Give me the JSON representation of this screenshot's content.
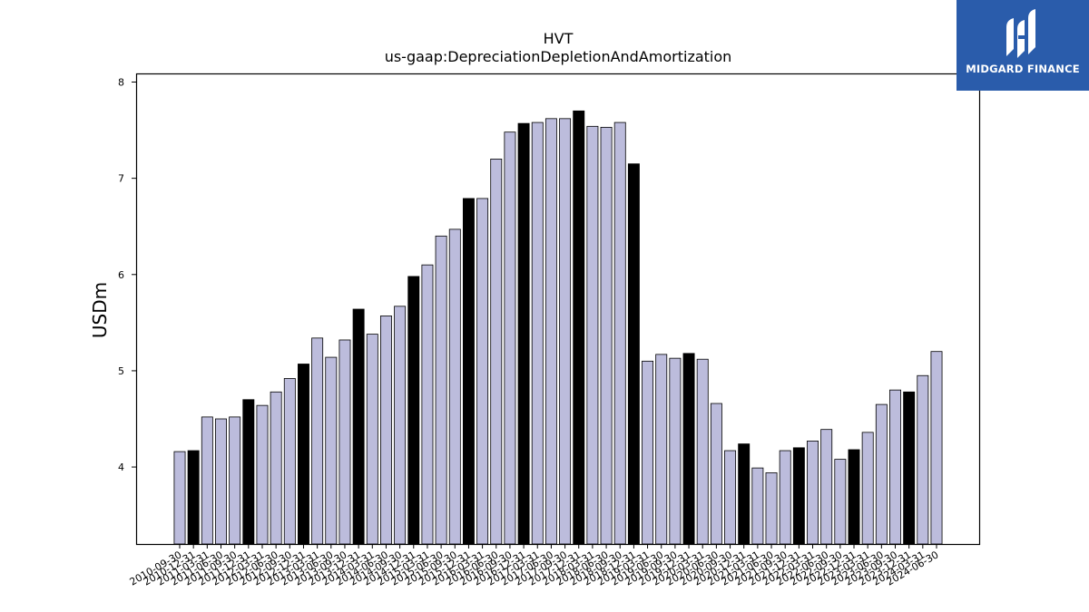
{
  "brand": {
    "name": "MIDGARD FINANCE",
    "icon": "midgard-logo-icon",
    "background": "#2a5cab"
  },
  "chart_data": {
    "type": "bar",
    "title": "HVT",
    "subtitle": "us-gaap:DepreciationDepletionAndAmortization",
    "ylabel": "USDm",
    "xlabel": "",
    "ylim": [
      3.2,
      8.08
    ],
    "yticks": [
      4,
      5,
      6,
      7,
      8
    ],
    "grid": false,
    "colors": {
      "quarter": "#bcbcdc",
      "year_end": "#000000",
      "edge": "#000000"
    },
    "categories": [
      "2010-09-30",
      "2010-12-31",
      "2011-03-31",
      "2011-06-30",
      "2011-09-30",
      "2011-12-31",
      "2012-03-31",
      "2012-06-30",
      "2012-09-30",
      "2012-12-31",
      "2013-03-31",
      "2013-06-30",
      "2013-09-30",
      "2013-12-31",
      "2014-03-31",
      "2014-06-30",
      "2014-09-30",
      "2014-12-31",
      "2015-03-31",
      "2015-06-30",
      "2015-09-30",
      "2015-12-31",
      "2016-03-31",
      "2016-06-30",
      "2016-09-30",
      "2016-12-31",
      "2017-03-31",
      "2017-06-30",
      "2017-09-30",
      "2017-12-31",
      "2018-03-31",
      "2018-06-30",
      "2018-09-30",
      "2018-12-31",
      "2019-03-31",
      "2019-06-30",
      "2019-09-30",
      "2019-12-31",
      "2020-03-31",
      "2020-06-30",
      "2020-09-30",
      "2020-12-31",
      "2021-03-31",
      "2021-06-30",
      "2021-09-30",
      "2021-12-31",
      "2022-03-31",
      "2022-06-30",
      "2022-09-30",
      "2022-12-31",
      "2023-03-31",
      "2023-06-30",
      "2023-09-30",
      "2023-12-31",
      "2024-03-31",
      "2024-06-30"
    ],
    "values": [
      4.16,
      4.17,
      4.52,
      4.5,
      4.52,
      4.7,
      4.64,
      4.78,
      4.92,
      5.07,
      5.34,
      5.14,
      5.32,
      5.64,
      5.38,
      5.57,
      5.67,
      5.98,
      6.1,
      6.4,
      6.47,
      6.79,
      6.79,
      7.2,
      7.48,
      7.57,
      7.58,
      7.62,
      7.62,
      7.7,
      7.54,
      7.53,
      7.58,
      7.15,
      5.1,
      5.17,
      5.13,
      5.18,
      5.12,
      4.66,
      4.17,
      4.24,
      3.99,
      3.94,
      4.17,
      4.2,
      4.27,
      4.39,
      4.08,
      4.18,
      4.36,
      4.65,
      4.8,
      4.78,
      4.95,
      5.2
    ],
    "highlight": [
      false,
      true,
      false,
      false,
      false,
      true,
      false,
      false,
      false,
      true,
      false,
      false,
      false,
      true,
      false,
      false,
      false,
      true,
      false,
      false,
      false,
      true,
      false,
      false,
      false,
      true,
      false,
      false,
      false,
      true,
      false,
      false,
      false,
      true,
      false,
      false,
      false,
      true,
      false,
      false,
      false,
      true,
      false,
      false,
      false,
      true,
      false,
      false,
      false,
      true,
      false,
      false,
      false,
      true,
      false,
      false
    ]
  }
}
